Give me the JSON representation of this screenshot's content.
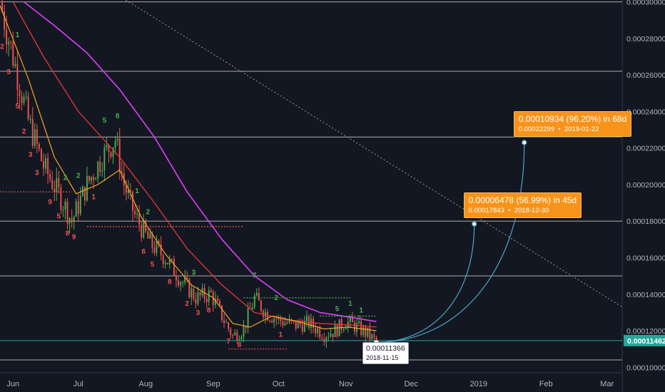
{
  "chart_data": {
    "type": "candlestick",
    "y_axis": {
      "position": "right",
      "ylim": [
        9.7e-05,
        0.000301
      ],
      "ticks": [
        "0.00030000",
        "0.00028000",
        "0.00026000",
        "0.00024000",
        "0.00022000",
        "0.00020000",
        "0.00018000",
        "0.00016000",
        "0.00014000",
        "0.00012000",
        "0.00010000"
      ],
      "tick_values": [
        0.0003,
        0.00028,
        0.00026,
        0.00024,
        0.00022,
        0.0002,
        0.00018,
        0.00016,
        0.00014,
        0.00012,
        0.0001
      ]
    },
    "x_axis": {
      "range": [
        "2018-05-26",
        "2019-03-08"
      ],
      "ticks": [
        {
          "label": "Jun",
          "date": "2018-06-01"
        },
        {
          "label": "Jul",
          "date": "2018-07-01"
        },
        {
          "label": "Aug",
          "date": "2018-08-01"
        },
        {
          "label": "Sep",
          "date": "2018-09-01"
        },
        {
          "label": "Oct",
          "date": "2018-10-01"
        },
        {
          "label": "Nov",
          "date": "2018-11-01"
        },
        {
          "label": "Dec",
          "date": "2018-12-01"
        },
        {
          "label": "2019",
          "date": "2019-01-01"
        },
        {
          "label": "Feb",
          "date": "2019-02-01"
        },
        {
          "label": "Mar",
          "date": "2019-03-01"
        }
      ]
    },
    "current_price": {
      "label": "0.00011462",
      "value": 0.00011462,
      "color": "#26a69a"
    },
    "horizontal_levels": [
      0.0003,
      0.000262,
      0.000226,
      0.00018,
      0.00015,
      0.000104
    ],
    "trendline": {
      "from": [
        "2018-07-20",
        0.000303
      ],
      "to": [
        "2019-03-08",
        0.000133
      ]
    },
    "anchor_points": [
      [
        "2018-05-26",
        0.0003
      ],
      [
        "2018-06-01",
        0.00027
      ],
      [
        "2018-06-08",
        0.000235
      ],
      [
        "2018-06-15",
        0.00021
      ],
      [
        "2018-06-22",
        0.000195
      ],
      [
        "2018-06-28",
        0.00018
      ],
      [
        "2018-07-05",
        0.0002
      ],
      [
        "2018-07-12",
        0.000215
      ],
      [
        "2018-07-18",
        0.000225
      ],
      [
        "2018-07-22",
        0.0002
      ],
      [
        "2018-07-27",
        0.000183
      ],
      [
        "2018-08-03",
        0.000168
      ],
      [
        "2018-08-10",
        0.00016
      ],
      [
        "2018-08-17",
        0.000148
      ],
      [
        "2018-08-24",
        0.000138
      ],
      [
        "2018-08-31",
        0.00014
      ],
      [
        "2018-09-05",
        0.000128
      ],
      [
        "2018-09-10",
        0.000117
      ],
      [
        "2018-09-15",
        0.000121
      ],
      [
        "2018-09-20",
        0.000138
      ],
      [
        "2018-09-25",
        0.00013
      ],
      [
        "2018-10-01",
        0.000126
      ],
      [
        "2018-10-08",
        0.000123
      ],
      [
        "2018-10-15",
        0.000124
      ],
      [
        "2018-10-22",
        0.000118
      ],
      [
        "2018-10-27",
        0.00012
      ],
      [
        "2018-11-01",
        0.000125
      ],
      [
        "2018-11-06",
        0.000122
      ],
      [
        "2018-11-11",
        0.000118
      ],
      [
        "2018-11-15",
        0.0001136
      ]
    ],
    "ma_fast": [
      [
        "2018-05-26",
        0.000298
      ],
      [
        "2018-06-08",
        0.000258
      ],
      [
        "2018-06-20",
        0.000215
      ],
      [
        "2018-06-30",
        0.000195
      ],
      [
        "2018-07-10",
        0.0002
      ],
      [
        "2018-07-20",
        0.000208
      ],
      [
        "2018-07-30",
        0.000182
      ],
      [
        "2018-08-10",
        0.000162
      ],
      [
        "2018-08-22",
        0.000145
      ],
      [
        "2018-09-01",
        0.000138
      ],
      [
        "2018-09-10",
        0.000124
      ],
      [
        "2018-09-18",
        0.000122
      ],
      [
        "2018-09-28",
        0.000128
      ],
      [
        "2018-10-10",
        0.000125
      ],
      [
        "2018-10-22",
        0.000121
      ],
      [
        "2018-11-02",
        0.000122
      ],
      [
        "2018-11-15",
        0.00012
      ]
    ],
    "ma_mid": [
      [
        "2018-06-01",
        0.0003
      ],
      [
        "2018-06-15",
        0.00027
      ],
      [
        "2018-07-01",
        0.00024
      ],
      [
        "2018-07-20",
        0.000215
      ],
      [
        "2018-08-05",
        0.00019
      ],
      [
        "2018-08-20",
        0.000165
      ],
      [
        "2018-09-05",
        0.000145
      ],
      [
        "2018-09-20",
        0.00013
      ],
      [
        "2018-10-05",
        0.000126
      ],
      [
        "2018-10-20",
        0.000124
      ],
      [
        "2018-11-05",
        0.000123
      ],
      [
        "2018-11-15",
        0.000122
      ]
    ],
    "ma_slow": [
      [
        "2018-06-06",
        0.0003
      ],
      [
        "2018-06-20",
        0.000287
      ],
      [
        "2018-07-05",
        0.000272
      ],
      [
        "2018-07-20",
        0.000252
      ],
      [
        "2018-08-05",
        0.000226
      ],
      [
        "2018-08-20",
        0.000196
      ],
      [
        "2018-09-05",
        0.00017
      ],
      [
        "2018-09-20",
        0.00015
      ],
      [
        "2018-10-05",
        0.000137
      ],
      [
        "2018-10-20",
        0.00013
      ],
      [
        "2018-11-05",
        0.000127
      ],
      [
        "2018-11-15",
        0.000125
      ]
    ],
    "projections": [
      {
        "main": "0.00006478 (56.99%) in 45d",
        "sub_price": "0.00017843",
        "sub_date": "2018-12-30",
        "target": [
          "2018-12-30",
          0.00017843
        ]
      },
      {
        "main": "0.00010934 (96.20%) in 68d",
        "sub_price": "0.00022299",
        "sub_date": "2019-01-22",
        "target": [
          "2019-01-22",
          0.00022299
        ]
      }
    ],
    "origin": {
      "price": "0.00011366",
      "date": "2018-11-15",
      "value": 0.00011366
    },
    "sequence_labels_red": [
      "2",
      "3",
      "3",
      "5",
      "2",
      "3",
      "9",
      "5",
      "8",
      "9",
      "1",
      "6",
      "5",
      "8",
      "2",
      "3",
      "8",
      "7",
      "8",
      "1",
      "5"
    ],
    "sequence_labels_green": [
      "1",
      "2",
      "2",
      "5",
      "8",
      "1",
      "2",
      "3",
      "7",
      "2",
      "5",
      "1",
      "1"
    ]
  },
  "colors": {
    "background": "#131722",
    "grid": "#c8c8c8",
    "up_candle": "#4caf50",
    "down_candle": "#ef5350",
    "ma_fast": "#f5a623",
    "ma_mid": "#e53935",
    "ma_slow": "#e040fb",
    "arc": "#4da6c4",
    "callout": "#f7931a",
    "axis_text": "#b2b5be"
  }
}
